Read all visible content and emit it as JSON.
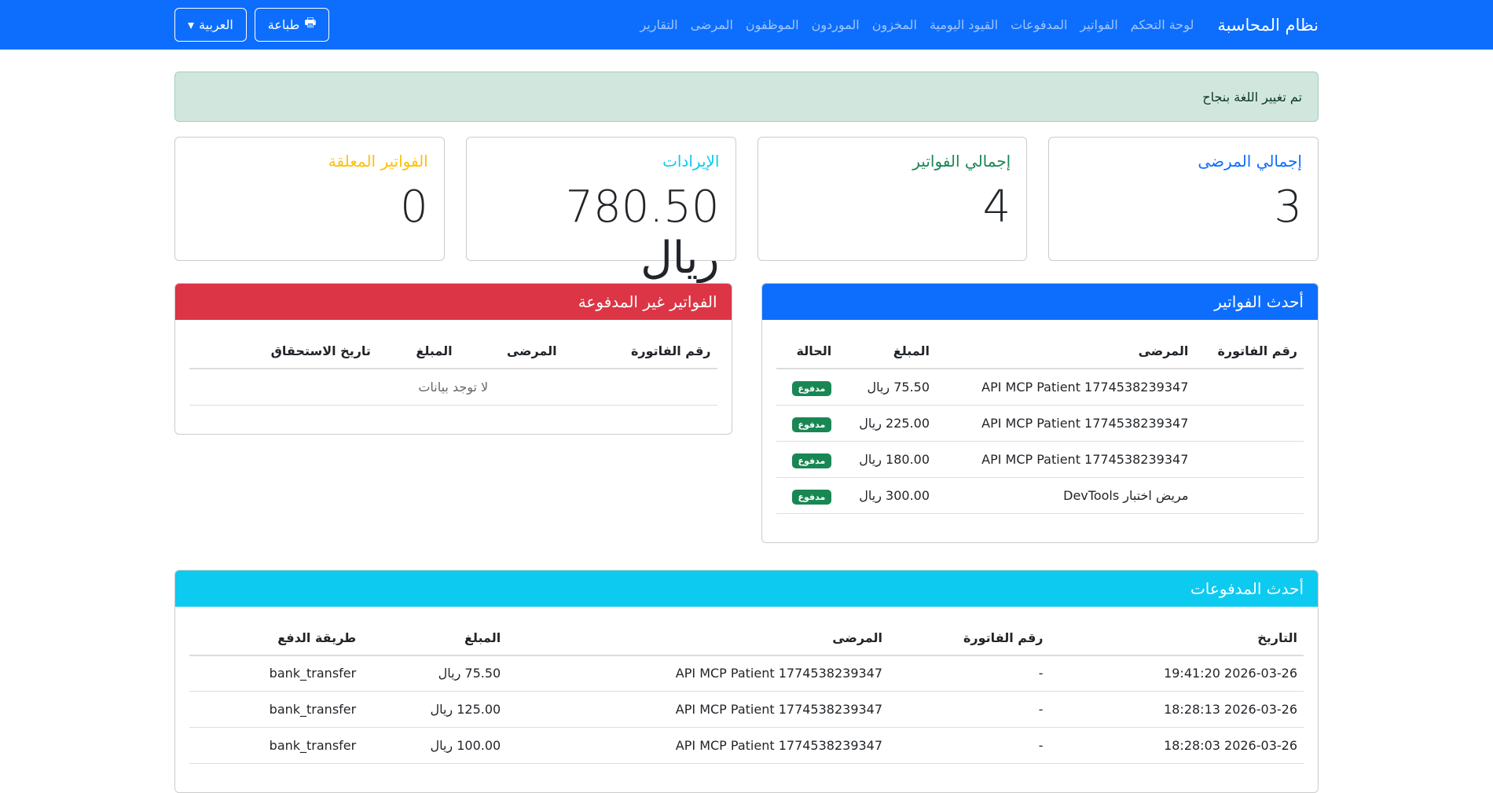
{
  "nav": {
    "brand": "نظام المحاسبة",
    "links": [
      "لوحة التحكم",
      "الفواتير",
      "المدفوعات",
      "القيود اليومية",
      "المخزون",
      "الموردون",
      "الموظفون",
      "المرضى",
      "التقارير"
    ],
    "print": "طباعة",
    "language": "العربية"
  },
  "alert": "تم تغيير اللغة بنجاح",
  "stats": [
    {
      "label": "إجمالي المرضى",
      "value": "3",
      "color": "#0d6efd"
    },
    {
      "label": "إجمالي الفواتير",
      "value": "4",
      "color": "#198754"
    },
    {
      "label": "الإيرادات",
      "value": "780.50 ريال",
      "color": "#0dcaf0"
    },
    {
      "label": "الفواتير المعلقة",
      "value": "0",
      "color": "#ffc107"
    }
  ],
  "recent_invoices": {
    "title": "أحدث الفواتير",
    "headers": [
      "رقم الفاتورة",
      "المرضى",
      "المبلغ",
      "الحالة"
    ],
    "rows": [
      [
        "",
        "API MCP Patient 1774538239347",
        "75.50 ريال",
        "مدفوع"
      ],
      [
        "",
        "API MCP Patient 1774538239347",
        "225.00 ريال",
        "مدفوع"
      ],
      [
        "",
        "API MCP Patient 1774538239347",
        "180.00 ريال",
        "مدفوع"
      ],
      [
        "",
        "مريض اختبار DevTools",
        "300.00 ريال",
        "مدفوع"
      ]
    ]
  },
  "unpaid": {
    "title": "الفواتير غير المدفوعة",
    "headers": [
      "رقم الفاتورة",
      "المرضى",
      "المبلغ",
      "تاريخ الاستحقاق"
    ],
    "empty": "لا توجد بيانات"
  },
  "payments": {
    "title": "أحدث المدفوعات",
    "headers": [
      "التاريخ",
      "رقم الفاتورة",
      "المرضى",
      "المبلغ",
      "طريقة الدفع"
    ],
    "rows": [
      [
        "2026-03-26 19:41:20",
        "-",
        "API MCP Patient 1774538239347",
        "75.50 ريال",
        "bank_transfer"
      ],
      [
        "2026-03-26 18:28:13",
        "-",
        "API MCP Patient 1774538239347",
        "125.00 ريال",
        "bank_transfer"
      ],
      [
        "2026-03-26 18:28:03",
        "-",
        "API MCP Patient 1774538239347",
        "100.00 ريال",
        "bank_transfer"
      ]
    ]
  },
  "colors": {
    "primary": "#0d6efd",
    "danger": "#dc3545",
    "info": "#0dcaf0",
    "success": "#198754"
  }
}
